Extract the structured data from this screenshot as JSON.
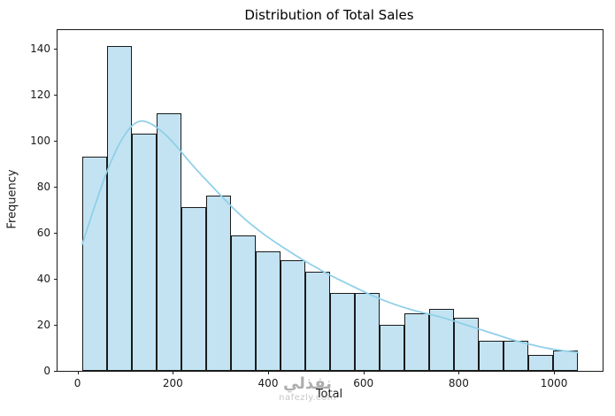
{
  "title": "Distribution of Total Sales",
  "watermark": {
    "line1": "نفذلي",
    "line2": "nafezly.com"
  },
  "chart_data": {
    "type": "bar",
    "subtype": "histogram-with-kde",
    "title": "Distribution of Total Sales",
    "xlabel": "Total",
    "ylabel": "Frequency",
    "xlim": [
      -42,
      1102
    ],
    "ylim": [
      0,
      148
    ],
    "xticks": [
      0,
      200,
      400,
      600,
      800,
      1000
    ],
    "yticks": [
      0,
      20,
      40,
      60,
      80,
      100,
      120,
      140
    ],
    "grid": false,
    "legend": "none",
    "bin_start": 10,
    "bin_width": 52,
    "counts": [
      93,
      141,
      103,
      112,
      71,
      76,
      59,
      52,
      48,
      43,
      34,
      34,
      20,
      25,
      27,
      23,
      13,
      13,
      7,
      9
    ],
    "kde": {
      "x": [
        10,
        35,
        60,
        85,
        110,
        130,
        150,
        175,
        200,
        230,
        260,
        290,
        320,
        350,
        380,
        410,
        440,
        470,
        500,
        530,
        560,
        590,
        620,
        650,
        680,
        710,
        740,
        770,
        800,
        830,
        860,
        890,
        920,
        950,
        980,
        1010,
        1050
      ],
      "y": [
        55,
        71,
        86,
        98,
        106,
        108.8,
        108,
        104.5,
        99.5,
        92,
        85,
        78.5,
        72,
        66,
        61,
        56.5,
        52.5,
        48.5,
        45,
        41.5,
        38.5,
        35.5,
        32.5,
        30,
        27.8,
        26,
        24.5,
        23,
        21,
        19,
        17,
        15,
        13,
        11.5,
        10,
        9,
        8
      ]
    },
    "colors": {
      "bar_fill": "#c3e3f2",
      "bar_edge": "#1a1a1a",
      "kde_line": "#8fd0e8",
      "spine": "#1a1a1a",
      "text": "#1a1a1a"
    }
  }
}
